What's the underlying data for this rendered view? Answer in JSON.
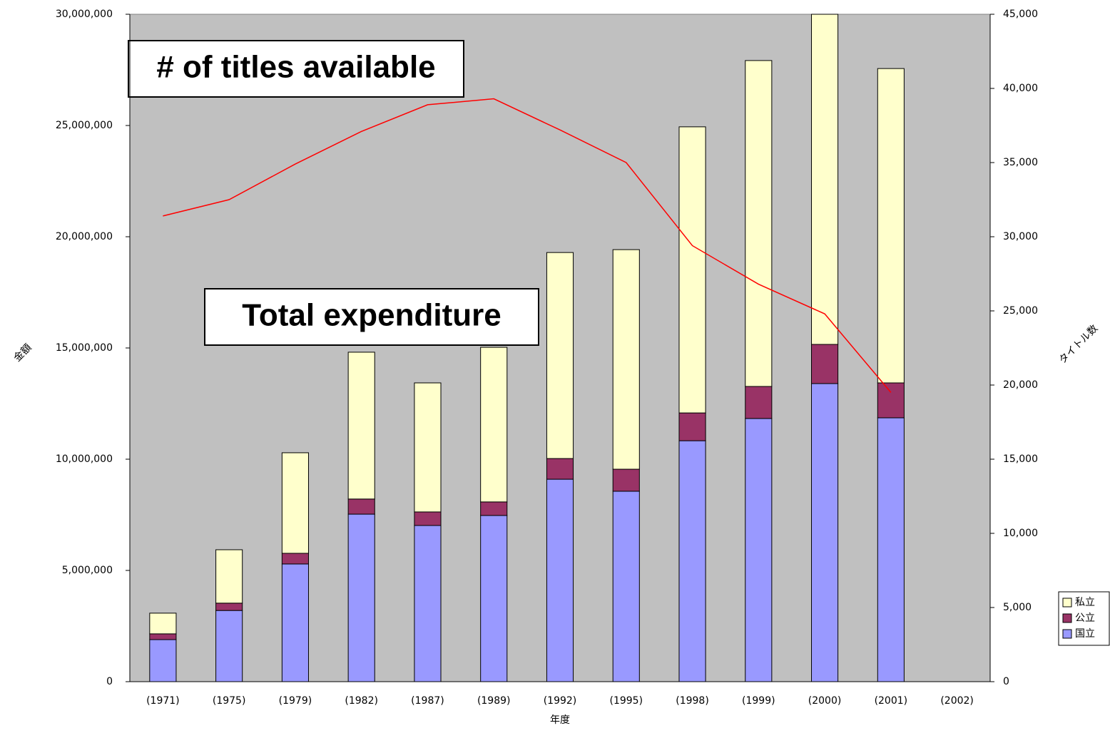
{
  "chart_data": {
    "type": "bar",
    "stacked": true,
    "xlabel": "年度",
    "ylabel": "金額",
    "y2label": "タイトル数",
    "annotations": [
      "# of titles available",
      "Total expenditure"
    ],
    "categories": [
      "(1971)",
      "(1975)",
      "(1979)",
      "(1982)",
      "(1987)",
      "(1989)",
      "(1992)",
      "(1995)",
      "(1998)",
      "(1999)",
      "(2000)",
      "(2001)",
      "(2002)"
    ],
    "series": [
      {
        "name": "国立",
        "color": "#9999ff",
        "values": [
          1890000,
          3200000,
          5290000,
          7530000,
          7020000,
          7470000,
          9100000,
          8560000,
          10830000,
          11830000,
          13400000,
          11860000,
          null
        ]
      },
      {
        "name": "公立",
        "color": "#993366",
        "values": [
          260000,
          330000,
          480000,
          680000,
          610000,
          610000,
          930000,
          990000,
          1250000,
          1440000,
          1760000,
          1570000,
          null
        ]
      },
      {
        "name": "私立",
        "color": "#ffffcc",
        "values": [
          930000,
          2400000,
          4520000,
          6600000,
          5800000,
          6950000,
          9260000,
          9870000,
          12860000,
          14650000,
          14840000,
          14130000,
          null
        ]
      },
      {
        "type": "line",
        "axis": "y2",
        "color": "#ff0000",
        "values": [
          31400,
          32500,
          34900,
          37100,
          38900,
          39300,
          37200,
          35000,
          29400,
          26800,
          24800,
          19500,
          null
        ]
      }
    ],
    "ylim": [
      0,
      30000000
    ],
    "yticks": [
      0,
      {
        "value": 5000000,
        "label": "5,000,000"
      },
      {
        "value": 10000000,
        "label": "10,000,000"
      },
      {
        "value": 15000000,
        "label": "15,000,000"
      },
      {
        "value": 20000000,
        "label": "20,000,000"
      },
      {
        "value": 25000000,
        "label": "25,000,000"
      },
      {
        "value": 30000000,
        "label": "30,000,000"
      }
    ],
    "y2lim": [
      0,
      45000
    ],
    "y2ticks": [
      0,
      {
        "value": 5000,
        "label": "5,000"
      },
      {
        "value": 10000,
        "label": "10,000"
      },
      {
        "value": 15000,
        "label": "15,000"
      },
      {
        "value": 20000,
        "label": "20,000"
      },
      {
        "value": 25000,
        "label": "25,000"
      },
      {
        "value": 30000,
        "label": "30,000"
      },
      {
        "value": 35000,
        "label": "35,000"
      },
      {
        "value": 40000,
        "label": "40,000"
      },
      {
        "value": 45000,
        "label": "45,000"
      }
    ],
    "legend": "right",
    "background": "#c0c0c0"
  }
}
